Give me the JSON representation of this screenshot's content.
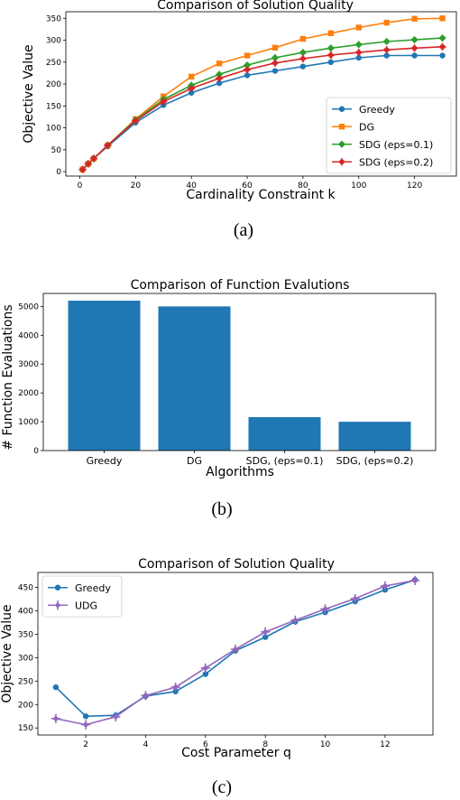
{
  "chart_data": [
    {
      "type": "line",
      "title": "Comparison of Solution Quality",
      "xlabel": "Cardinality Constraint k",
      "ylabel": "Objective Value",
      "caption": "(a)",
      "xlim": [
        -5,
        135
      ],
      "ylim": [
        -10,
        365
      ],
      "xticks": [
        0,
        20,
        40,
        60,
        80,
        100,
        120
      ],
      "yticks": [
        0,
        50,
        100,
        150,
        200,
        250,
        300,
        350
      ],
      "legend_position": "lower-right",
      "series": [
        {
          "name": "Greedy",
          "color": "#1f77b4",
          "marker": "circle",
          "x": [
            1,
            3,
            5,
            10,
            20,
            30,
            40,
            50,
            60,
            70,
            80,
            90,
            100,
            110,
            120,
            130
          ],
          "y": [
            5,
            18,
            30,
            58,
            112,
            152,
            180,
            202,
            220,
            230,
            240,
            250,
            260,
            265,
            265,
            265
          ]
        },
        {
          "name": "DG",
          "color": "#ff7f0e",
          "marker": "square",
          "x": [
            1,
            3,
            5,
            10,
            20,
            30,
            40,
            50,
            60,
            70,
            80,
            90,
            100,
            110,
            120,
            130
          ],
          "y": [
            5,
            18,
            30,
            60,
            120,
            172,
            217,
            247,
            265,
            283,
            303,
            316,
            329,
            340,
            349,
            350
          ]
        },
        {
          "name": "SDG (eps=0.1)",
          "color": "#2ca02c",
          "marker": "diamond",
          "x": [
            1,
            3,
            5,
            10,
            20,
            30,
            40,
            50,
            60,
            70,
            80,
            90,
            100,
            110,
            120,
            130
          ],
          "y": [
            5,
            18,
            30,
            60,
            118,
            165,
            197,
            222,
            243,
            260,
            272,
            282,
            290,
            297,
            301,
            305
          ]
        },
        {
          "name": "SDG (eps=0.2)",
          "color": "#d62728",
          "marker": "plus",
          "x": [
            1,
            3,
            5,
            10,
            20,
            30,
            40,
            50,
            60,
            70,
            80,
            90,
            100,
            110,
            120,
            130
          ],
          "y": [
            5,
            18,
            30,
            60,
            116,
            160,
            190,
            213,
            233,
            248,
            258,
            266,
            272,
            278,
            282,
            285
          ]
        }
      ]
    },
    {
      "type": "bar",
      "title": "Comparison of Function Evalutions",
      "xlabel": "Algorithms",
      "ylabel": "# Function Evaluations",
      "caption": "(b)",
      "ylim": [
        0,
        5450
      ],
      "yticks": [
        0,
        1000,
        2000,
        3000,
        4000,
        5000
      ],
      "categories": [
        "Greedy",
        "DG",
        "SDG, (eps=0.1)",
        "SDG, (eps=0.2)"
      ],
      "values": [
        5200,
        5000,
        1160,
        1000
      ],
      "color": "#1f77b4"
    },
    {
      "type": "line",
      "title": "Comparison of Solution Quality",
      "xlabel": "Cost Parameter q",
      "ylabel": "Objective Value",
      "caption": "(c)",
      "xlim": [
        0.4,
        13.6
      ],
      "ylim": [
        135,
        482
      ],
      "xticks": [
        2,
        4,
        6,
        8,
        10,
        12
      ],
      "yticks": [
        150,
        200,
        250,
        300,
        350,
        400,
        450
      ],
      "legend_position": "upper-left",
      "series": [
        {
          "name": "Greedy",
          "color": "#1f77b4",
          "marker": "circle",
          "x": [
            1,
            2,
            3,
            4,
            5,
            6,
            7,
            8,
            9,
            10,
            11,
            12,
            13
          ],
          "y": [
            237,
            175,
            177,
            218,
            228,
            265,
            315,
            344,
            377,
            397,
            420,
            445,
            466
          ]
        },
        {
          "name": "UDG",
          "color": "#9467bd",
          "marker": "star",
          "x": [
            1,
            2,
            3,
            4,
            5,
            6,
            7,
            8,
            9,
            10,
            11,
            12,
            13
          ],
          "y": [
            170,
            157,
            174,
            219,
            237,
            278,
            318,
            355,
            380,
            404,
            426,
            453,
            465
          ]
        }
      ]
    }
  ]
}
